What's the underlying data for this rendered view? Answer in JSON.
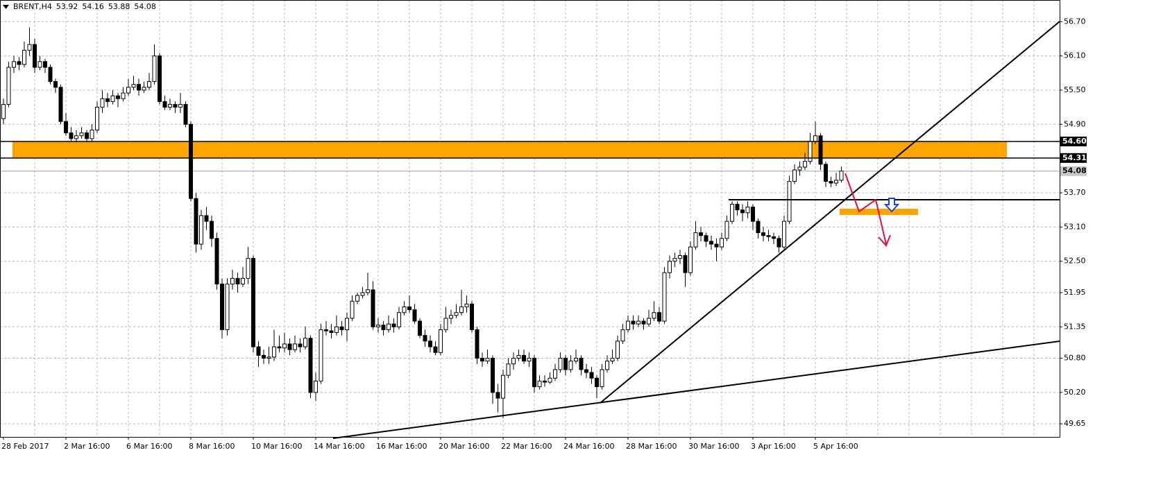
{
  "chart_data": {
    "type": "candlestick",
    "title": "BRENT,H4",
    "ylim": [
      49.42,
      57.08
    ],
    "yticks": [
      {
        "value": 56.7,
        "label": "56.70"
      },
      {
        "value": 56.1,
        "label": "56.10"
      },
      {
        "value": 55.5,
        "label": "55.50"
      },
      {
        "value": 54.9,
        "label": "54.90"
      },
      {
        "value": 53.7,
        "label": "53.70"
      },
      {
        "value": 53.1,
        "label": "53.10"
      },
      {
        "value": 52.5,
        "label": "52.50"
      },
      51.95,
      51.35,
      {
        "value": 50.8,
        "label": "50.80"
      },
      {
        "value": 50.2,
        "label": "50.20"
      },
      49.65
    ],
    "grid": true,
    "levels": [
      {
        "value": 54.6,
        "label": "54.60"
      },
      {
        "value": 54.31,
        "label": "54.31"
      }
    ],
    "level_color": "#000000",
    "zone_color": "#ffa500",
    "up_color": "#ffffff",
    "down_color": "#000000",
    "categories": [
      "28 Feb 2017",
      null,
      null,
      null,
      null,
      null,
      null,
      null,
      null,
      null,
      null,
      null,
      "2 Mar 16:00",
      null,
      null,
      null,
      null,
      null,
      null,
      null,
      null,
      null,
      null,
      null,
      "6 Mar 16:00",
      null,
      null,
      null,
      null,
      null,
      null,
      null,
      null,
      null,
      null,
      null,
      "8 Mar 16:00",
      null,
      null,
      null,
      null,
      null,
      null,
      null,
      null,
      null,
      null,
      null,
      "10 Mar 16:00",
      null,
      null,
      null,
      null,
      null,
      null,
      null,
      null,
      null,
      null,
      null,
      "14 Mar 16:00",
      null,
      null,
      null,
      null,
      null,
      null,
      null,
      null,
      null,
      null,
      null,
      "16 Mar 16:00",
      null,
      null,
      null,
      null,
      null,
      null,
      null,
      null,
      null,
      null,
      null,
      "20 Mar 16:00",
      null,
      null,
      null,
      null,
      null,
      null,
      null,
      null,
      null,
      null,
      null,
      "22 Mar 16:00",
      null,
      null,
      null,
      null,
      null,
      null,
      null,
      null,
      null,
      null,
      null,
      "24 Mar 16:00",
      null,
      null,
      null,
      null,
      null,
      null,
      null,
      null,
      null,
      null,
      null,
      "28 Mar 16:00",
      null,
      null,
      null,
      null,
      null,
      null,
      null,
      null,
      null,
      null,
      null,
      "30 Mar 16:00",
      null,
      null,
      null,
      null,
      null,
      null,
      null,
      null,
      null,
      null,
      null,
      "3 Apr 16:00",
      null,
      null,
      null,
      null,
      null,
      null,
      null,
      null,
      null,
      null,
      null,
      "5 Apr 16:00",
      null,
      null,
      null,
      null,
      null
    ],
    "candles": [
      [
        55.0,
        55.35,
        54.9,
        55.25
      ],
      [
        55.25,
        56.0,
        55.2,
        55.9
      ],
      [
        55.9,
        56.1,
        55.8,
        56.0
      ],
      [
        56.0,
        56.08,
        55.85,
        55.95
      ],
      [
        55.95,
        56.35,
        55.9,
        56.2
      ],
      [
        56.2,
        56.6,
        56.1,
        56.3
      ],
      [
        56.3,
        56.4,
        55.8,
        55.9
      ],
      [
        55.9,
        56.1,
        55.85,
        56.0
      ],
      [
        56.0,
        56.05,
        55.8,
        55.9
      ],
      [
        55.9,
        55.95,
        55.6,
        55.65
      ],
      [
        55.65,
        55.7,
        55.45,
        55.55
      ],
      [
        55.55,
        55.6,
        54.9,
        54.95
      ],
      [
        54.95,
        55.1,
        54.7,
        54.75
      ],
      [
        54.75,
        54.85,
        54.6,
        54.65
      ],
      [
        54.65,
        54.8,
        54.6,
        54.7
      ],
      [
        54.7,
        54.85,
        54.65,
        54.75
      ],
      [
        54.75,
        54.8,
        54.6,
        54.65
      ],
      [
        54.65,
        54.9,
        54.6,
        54.8
      ],
      [
        54.8,
        55.3,
        54.75,
        55.2
      ],
      [
        55.2,
        55.5,
        55.1,
        55.35
      ],
      [
        55.35,
        55.45,
        55.2,
        55.3
      ],
      [
        55.3,
        55.5,
        55.25,
        55.4
      ],
      [
        55.4,
        55.45,
        55.2,
        55.35
      ],
      [
        55.35,
        55.55,
        55.3,
        55.45
      ],
      [
        55.45,
        55.7,
        55.4,
        55.55
      ],
      [
        55.55,
        55.75,
        55.5,
        55.6
      ],
      [
        55.6,
        55.7,
        55.4,
        55.5
      ],
      [
        55.5,
        55.65,
        55.45,
        55.55
      ],
      [
        55.55,
        55.8,
        55.5,
        55.65
      ],
      [
        55.65,
        56.3,
        55.6,
        56.1
      ],
      [
        56.1,
        56.15,
        55.25,
        55.3
      ],
      [
        55.3,
        55.4,
        55.15,
        55.2
      ],
      [
        55.2,
        55.35,
        55.15,
        55.25
      ],
      [
        55.25,
        55.3,
        55.1,
        55.2
      ],
      [
        55.2,
        55.45,
        55.1,
        55.25
      ],
      [
        55.25,
        55.3,
        54.85,
        54.9
      ],
      [
        54.9,
        54.95,
        53.55,
        53.6
      ],
      [
        53.6,
        53.7,
        52.65,
        52.8
      ],
      [
        52.8,
        53.4,
        52.7,
        53.3
      ],
      [
        53.3,
        53.45,
        53.05,
        53.2
      ],
      [
        53.2,
        53.3,
        52.75,
        52.9
      ],
      [
        52.9,
        53.0,
        52.0,
        52.1
      ],
      [
        52.1,
        52.2,
        51.15,
        51.3
      ],
      [
        51.3,
        52.2,
        51.2,
        52.1
      ],
      [
        52.1,
        52.35,
        52.0,
        52.2
      ],
      [
        52.2,
        52.3,
        51.95,
        52.1
      ],
      [
        52.1,
        52.4,
        52.05,
        52.2
      ],
      [
        52.2,
        52.75,
        52.1,
        52.55
      ],
      [
        52.55,
        52.6,
        50.9,
        51.0
      ],
      [
        51.0,
        51.1,
        50.65,
        50.85
      ],
      [
        50.85,
        50.95,
        50.7,
        50.8
      ],
      [
        50.8,
        51.0,
        50.7,
        50.82
      ],
      [
        50.82,
        51.3,
        50.75,
        51.0
      ],
      [
        51.0,
        51.2,
        50.9,
        50.98
      ],
      [
        50.98,
        51.25,
        50.9,
        51.05
      ],
      [
        51.05,
        51.15,
        50.85,
        50.95
      ],
      [
        50.95,
        51.2,
        50.9,
        51.05
      ],
      [
        51.05,
        51.15,
        50.9,
        51.0
      ],
      [
        51.0,
        51.35,
        50.95,
        51.15
      ],
      [
        51.15,
        51.2,
        50.1,
        50.2
      ],
      [
        50.2,
        50.55,
        50.05,
        50.4
      ],
      [
        50.4,
        51.4,
        50.35,
        51.3
      ],
      [
        51.3,
        51.45,
        51.2,
        51.28
      ],
      [
        51.28,
        51.4,
        51.15,
        51.25
      ],
      [
        51.25,
        51.55,
        51.2,
        51.35
      ],
      [
        51.35,
        51.45,
        51.2,
        51.3
      ],
      [
        51.3,
        51.6,
        51.1,
        51.5
      ],
      [
        51.5,
        51.9,
        51.45,
        51.8
      ],
      [
        51.8,
        51.95,
        51.75,
        51.9
      ],
      [
        51.9,
        52.05,
        51.85,
        51.95
      ],
      [
        51.95,
        52.3,
        51.9,
        52.0
      ],
      [
        52.0,
        52.15,
        51.3,
        51.35
      ],
      [
        51.35,
        51.5,
        51.25,
        51.38
      ],
      [
        51.38,
        51.45,
        51.2,
        51.3
      ],
      [
        51.3,
        51.55,
        51.25,
        51.4
      ],
      [
        51.4,
        51.5,
        51.25,
        51.35
      ],
      [
        51.35,
        51.7,
        51.3,
        51.6
      ],
      [
        51.6,
        51.8,
        51.55,
        51.7
      ],
      [
        51.7,
        51.9,
        51.6,
        51.65
      ],
      [
        51.65,
        51.75,
        51.4,
        51.45
      ],
      [
        51.45,
        51.5,
        51.15,
        51.2
      ],
      [
        51.2,
        51.3,
        51.0,
        51.1
      ],
      [
        51.1,
        51.2,
        50.9,
        51.0
      ],
      [
        51.0,
        51.1,
        50.85,
        50.9
      ],
      [
        50.9,
        51.4,
        50.85,
        51.3
      ],
      [
        51.3,
        51.7,
        51.25,
        51.5
      ],
      [
        51.5,
        51.65,
        51.4,
        51.55
      ],
      [
        51.55,
        51.75,
        51.5,
        51.6
      ],
      [
        51.6,
        52.0,
        51.55,
        51.7
      ],
      [
        51.7,
        51.9,
        51.6,
        51.75
      ],
      [
        51.75,
        51.8,
        51.25,
        51.3
      ],
      [
        51.3,
        51.35,
        50.7,
        50.8
      ],
      [
        50.8,
        50.9,
        50.65,
        50.75
      ],
      [
        50.75,
        50.95,
        50.7,
        50.8
      ],
      [
        50.8,
        50.85,
        50.0,
        50.2
      ],
      [
        50.2,
        50.35,
        49.85,
        50.1
      ],
      [
        50.1,
        50.6,
        49.75,
        50.5
      ],
      [
        50.5,
        50.8,
        50.45,
        50.7
      ],
      [
        50.7,
        50.9,
        50.6,
        50.8
      ],
      [
        50.8,
        50.95,
        50.75,
        50.85
      ],
      [
        50.85,
        50.95,
        50.7,
        50.75
      ],
      [
        50.75,
        50.9,
        50.65,
        50.8
      ],
      [
        50.8,
        50.85,
        50.2,
        50.3
      ],
      [
        50.3,
        50.5,
        50.25,
        50.4
      ],
      [
        50.4,
        50.5,
        50.3,
        50.38
      ],
      [
        50.38,
        50.55,
        50.35,
        50.45
      ],
      [
        50.45,
        50.7,
        50.4,
        50.6
      ],
      [
        50.6,
        50.9,
        50.55,
        50.8
      ],
      [
        50.8,
        50.85,
        50.5,
        50.6
      ],
      [
        50.6,
        50.85,
        50.55,
        50.75
      ],
      [
        50.75,
        50.95,
        50.7,
        50.8
      ],
      [
        50.8,
        50.85,
        50.5,
        50.6
      ],
      [
        50.6,
        50.7,
        50.45,
        50.55
      ],
      [
        50.55,
        50.65,
        50.35,
        50.45
      ],
      [
        50.45,
        50.5,
        50.1,
        50.3
      ],
      [
        50.3,
        50.7,
        50.25,
        50.6
      ],
      [
        50.6,
        50.85,
        50.55,
        50.75
      ],
      [
        50.75,
        50.95,
        50.7,
        50.8
      ],
      [
        50.8,
        51.2,
        50.75,
        51.1
      ],
      [
        51.1,
        51.4,
        51.05,
        51.3
      ],
      [
        51.3,
        51.55,
        51.25,
        51.45
      ],
      [
        51.45,
        51.55,
        51.3,
        51.4
      ],
      [
        51.4,
        51.55,
        51.35,
        51.45
      ],
      [
        51.45,
        51.5,
        51.3,
        51.4
      ],
      [
        51.4,
        51.65,
        51.35,
        51.5
      ],
      [
        51.5,
        51.8,
        51.45,
        51.6
      ],
      [
        51.6,
        51.7,
        51.4,
        51.45
      ],
      [
        51.45,
        52.4,
        51.4,
        52.3
      ],
      [
        52.3,
        52.6,
        52.2,
        52.5
      ],
      [
        52.5,
        52.65,
        52.4,
        52.55
      ],
      [
        52.55,
        52.7,
        52.45,
        52.6
      ],
      [
        52.6,
        52.65,
        52.05,
        52.3
      ],
      [
        52.3,
        52.85,
        52.25,
        52.75
      ],
      [
        52.75,
        53.2,
        52.7,
        53.0
      ],
      [
        53.0,
        53.1,
        52.85,
        52.95
      ],
      [
        52.95,
        53.0,
        52.75,
        52.85
      ],
      [
        52.85,
        52.95,
        52.7,
        52.8
      ],
      [
        52.8,
        52.9,
        52.5,
        52.75
      ],
      [
        52.75,
        53.0,
        52.7,
        52.9
      ],
      [
        52.9,
        53.3,
        52.85,
        53.2
      ],
      [
        53.2,
        53.55,
        53.15,
        53.5
      ],
      [
        53.5,
        53.55,
        53.3,
        53.4
      ],
      [
        53.4,
        53.5,
        53.2,
        53.35
      ],
      [
        53.35,
        53.55,
        53.25,
        53.45
      ],
      [
        53.45,
        53.5,
        53.05,
        53.2
      ],
      [
        53.2,
        53.25,
        52.9,
        53.0
      ],
      [
        53.0,
        53.1,
        52.85,
        52.95
      ],
      [
        52.95,
        53.05,
        52.85,
        52.93
      ],
      [
        52.93,
        53.0,
        52.8,
        52.9
      ],
      [
        52.9,
        52.95,
        52.65,
        52.75
      ],
      [
        52.75,
        53.3,
        52.7,
        53.2
      ],
      [
        53.2,
        54.0,
        53.15,
        53.9
      ],
      [
        53.9,
        54.2,
        53.85,
        54.1
      ],
      [
        54.1,
        54.25,
        54.0,
        54.15
      ],
      [
        54.15,
        54.4,
        54.1,
        54.25
      ],
      [
        54.25,
        54.75,
        54.2,
        54.6
      ],
      [
        54.6,
        54.95,
        54.55,
        54.7
      ],
      [
        54.7,
        54.75,
        54.1,
        54.2
      ],
      [
        54.2,
        54.25,
        53.8,
        53.9
      ],
      [
        53.9,
        53.98,
        53.8,
        53.87
      ],
      [
        53.87,
        54.05,
        53.82,
        53.92
      ],
      [
        53.92,
        54.16,
        53.88,
        54.08
      ]
    ]
  }
}
